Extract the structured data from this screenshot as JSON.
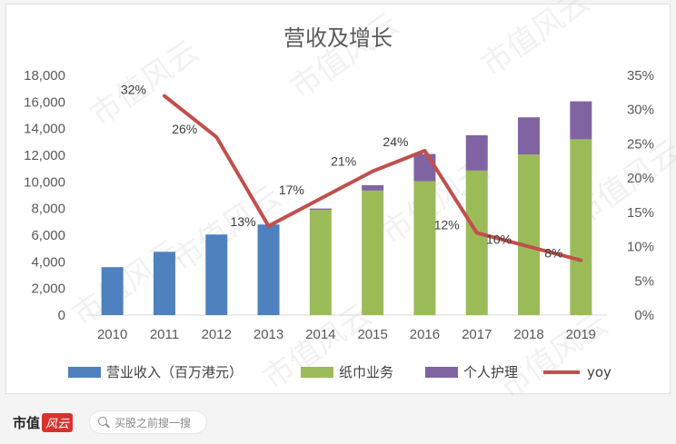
{
  "chart_data": {
    "type": "bar",
    "title": "营收及增长",
    "categories": [
      "2010",
      "2011",
      "2012",
      "2013",
      "2014",
      "2015",
      "2016",
      "2017",
      "2018",
      "2019"
    ],
    "series": [
      {
        "name": "营业收入（百万港元）",
        "type": "bar",
        "axis": "left",
        "color": "#4e81bd",
        "values": [
          3600,
          4750,
          6050,
          6800,
          null,
          null,
          null,
          null,
          null,
          null
        ]
      },
      {
        "name": "纸巾业务",
        "type": "bar",
        "axis": "left",
        "stack": "after-2013",
        "color": "#9bbb59",
        "values": [
          null,
          null,
          null,
          null,
          7900,
          9350,
          10050,
          10850,
          12050,
          13200
        ]
      },
      {
        "name": "个人护理",
        "type": "bar",
        "axis": "left",
        "stack": "after-2013",
        "color": "#8064a2",
        "values": [
          null,
          null,
          null,
          null,
          100,
          400,
          2050,
          2650,
          2800,
          2850
        ]
      },
      {
        "name": "yoy",
        "type": "line",
        "axis": "right",
        "color": "#c0504d",
        "values": [
          null,
          32,
          26,
          13,
          17,
          21,
          24,
          12,
          10,
          8
        ],
        "labels": [
          "",
          "32%",
          "26%",
          "13%",
          "17%",
          "21%",
          "24%",
          "12%",
          "10%",
          "8%"
        ]
      }
    ],
    "y_left": {
      "min": 0,
      "max": 18000,
      "ticks": [
        "0",
        "2,000",
        "4,000",
        "6,000",
        "8,000",
        "10,000",
        "12,000",
        "14,000",
        "16,000",
        "18,000"
      ]
    },
    "y_right": {
      "min": 0,
      "max": 35,
      "ticks": [
        "0%",
        "5%",
        "10%",
        "15%",
        "20%",
        "25%",
        "30%",
        "35%"
      ]
    },
    "grid": false,
    "legend_position": "bottom"
  },
  "watermark": "市值风云",
  "footer": {
    "logo_text": "市值",
    "logo_mark": "风云",
    "search_placeholder": "买股之前搜一搜",
    "search_icon": "search-icon"
  }
}
